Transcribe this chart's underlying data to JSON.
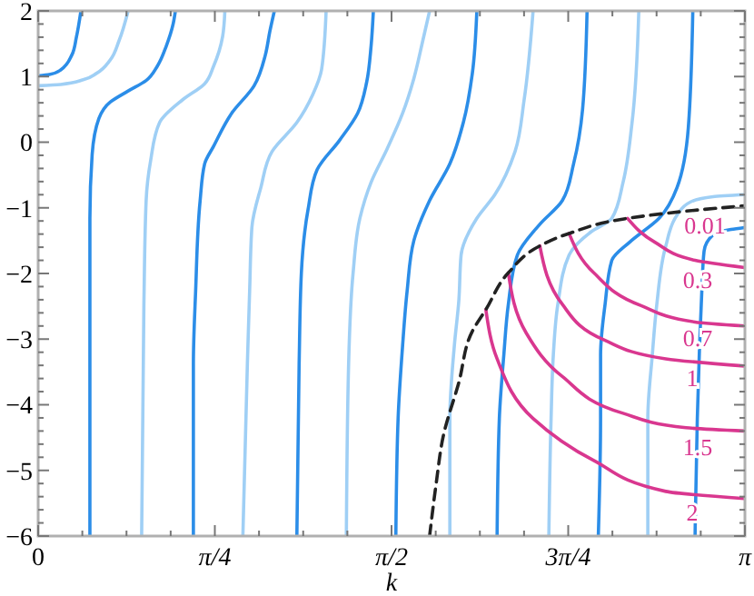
{
  "chart_data": {
    "type": "line",
    "xlabel": "k",
    "xlim": [
      0,
      3.14159
    ],
    "ylim": [
      -6,
      2
    ],
    "grid": false,
    "xticks": [
      {
        "value": 0,
        "label": "0"
      },
      {
        "value": 0.19635,
        "label": null
      },
      {
        "value": 0.3927,
        "label": null
      },
      {
        "value": 0.58905,
        "label": null
      },
      {
        "value": 0.7854,
        "label": "π/4"
      },
      {
        "value": 0.98175,
        "label": null
      },
      {
        "value": 1.1781,
        "label": null
      },
      {
        "value": 1.37445,
        "label": null
      },
      {
        "value": 1.5708,
        "label": "π/2"
      },
      {
        "value": 1.76715,
        "label": null
      },
      {
        "value": 1.9635,
        "label": null
      },
      {
        "value": 2.15985,
        "label": null
      },
      {
        "value": 2.3562,
        "label": "3π/4"
      },
      {
        "value": 2.55255,
        "label": null
      },
      {
        "value": 2.7489,
        "label": null
      },
      {
        "value": 2.94525,
        "label": null
      },
      {
        "value": 3.14159,
        "label": "π"
      }
    ],
    "yticks": [
      -6,
      {
        "value": -5.8,
        "label": null
      },
      {
        "value": -5.6,
        "label": null
      },
      {
        "value": -5.4,
        "label": null
      },
      {
        "value": -5.2,
        "label": null
      },
      -5,
      {
        "value": -4.8,
        "label": null
      },
      {
        "value": -4.6,
        "label": null
      },
      {
        "value": -4.4,
        "label": null
      },
      {
        "value": -4.2,
        "label": null
      },
      -4,
      {
        "value": -3.8,
        "label": null
      },
      {
        "value": -3.6,
        "label": null
      },
      {
        "value": -3.4,
        "label": null
      },
      {
        "value": -3.2,
        "label": null
      },
      -3,
      {
        "value": -2.8,
        "label": null
      },
      {
        "value": -2.6,
        "label": null
      },
      {
        "value": -2.4,
        "label": null
      },
      {
        "value": -2.2,
        "label": null
      },
      -2,
      {
        "value": -1.8,
        "label": null
      },
      {
        "value": -1.6,
        "label": null
      },
      {
        "value": -1.4,
        "label": null
      },
      {
        "value": -1.2,
        "label": null
      },
      -1,
      {
        "value": -0.8,
        "label": null
      },
      {
        "value": -0.6,
        "label": null
      },
      {
        "value": -0.4,
        "label": null
      },
      {
        "value": -0.2,
        "label": null
      },
      0,
      {
        "value": 0.2,
        "label": null
      },
      {
        "value": 0.4,
        "label": null
      },
      {
        "value": 0.6,
        "label": null
      },
      {
        "value": 0.8,
        "label": null
      },
      1,
      {
        "value": 1.2,
        "label": null
      },
      {
        "value": 1.4,
        "label": null
      },
      {
        "value": 1.6,
        "label": null
      },
      {
        "value": 1.8,
        "label": null
      },
      2
    ],
    "series": [
      {
        "color": "#2b8de8",
        "x": [
          0,
          0.05,
          0.1,
          0.15,
          0.17,
          0.19
        ],
        "values": [
          1.01,
          1.03,
          1.1,
          1.33,
          1.6,
          2
        ]
      },
      {
        "color": "#9fcff5",
        "x": [
          0,
          0.1,
          0.2,
          0.26,
          0.32,
          0.36,
          0.4
        ],
        "values": [
          0.86,
          0.88,
          0.95,
          1.05,
          1.25,
          1.55,
          2
        ]
      },
      {
        "color": "#2b8de8",
        "x": [
          0.23,
          0.23,
          0.23,
          0.24,
          0.27,
          0.32,
          0.4,
          0.48,
          0.53,
          0.57,
          0.6,
          0.61
        ],
        "values": [
          -6,
          -3.38,
          -1.16,
          -0.19,
          0.36,
          0.61,
          0.78,
          0.94,
          1.16,
          1.47,
          1.8,
          2
        ]
      },
      {
        "color": "#9fcff5",
        "x": [
          0.46,
          0.47,
          0.48,
          0.5,
          0.54,
          0.64,
          0.74,
          0.78,
          0.82,
          0.83
        ],
        "values": [
          -6,
          -2.47,
          -0.89,
          -0.28,
          0.3,
          0.64,
          0.89,
          1.16,
          1.61,
          2
        ]
      },
      {
        "color": "#2b8de8",
        "x": [
          0.69,
          0.69,
          0.7,
          0.72,
          0.74,
          0.78,
          0.86,
          0.96,
          1.01,
          1.03,
          1.05
        ],
        "values": [
          -6,
          -3.38,
          -2.27,
          -0.89,
          -0.33,
          -0.06,
          0.44,
          0.86,
          1.33,
          1.69,
          2
        ]
      },
      {
        "color": "#9fcff5",
        "x": [
          0.91,
          0.93,
          0.94,
          0.95,
          0.99,
          1.04,
          1.15,
          1.22,
          1.26,
          1.28
        ],
        "values": [
          -6,
          -3.38,
          -2.27,
          -1.3,
          -0.69,
          -0.14,
          0.3,
          0.72,
          1.11,
          2
        ]
      },
      {
        "color": "#2b8de8",
        "x": [
          1.15,
          1.16,
          1.17,
          1.2,
          1.24,
          1.34,
          1.42,
          1.46,
          1.48,
          1.49
        ],
        "values": [
          -6,
          -3.38,
          -1.99,
          -1.02,
          -0.42,
          0.03,
          0.44,
          0.91,
          1.47,
          2
        ]
      },
      {
        "color": "#9fcff5",
        "x": [
          1.37,
          1.38,
          1.4,
          1.43,
          1.48,
          1.55,
          1.62,
          1.67,
          1.71,
          1.74
        ],
        "values": [
          -6,
          -3.38,
          -1.99,
          -1.16,
          -0.61,
          -0.11,
          0.44,
          0.97,
          1.55,
          2
        ]
      },
      {
        "color": "#2b8de8",
        "x": [
          1.59,
          1.6,
          1.62,
          1.64,
          1.67,
          1.74,
          1.83,
          1.89,
          1.93,
          1.95
        ],
        "values": [
          -6,
          -4.21,
          -3.1,
          -2.27,
          -1.5,
          -0.89,
          -0.33,
          0.3,
          1.05,
          2
        ]
      },
      {
        "color": "#9fcff5",
        "x": [
          1.83,
          1.83,
          1.85,
          1.87,
          1.88,
          1.95,
          2.03,
          2.12,
          2.16,
          2.2
        ],
        "values": [
          -6,
          -4.21,
          -3.1,
          -2.41,
          -1.72,
          -1.16,
          -0.8,
          -0.14,
          0.64,
          2
        ]
      },
      {
        "color": "#2b8de8",
        "x": [
          2.04,
          2.05,
          2.07,
          2.09,
          2.13,
          2.23,
          2.33,
          2.38,
          2.42,
          2.44
        ],
        "values": [
          -6,
          -4.21,
          -3.24,
          -2.47,
          -1.72,
          -1.25,
          -0.89,
          -0.33,
          0.5,
          2
        ]
      },
      {
        "color": "#9fcff5",
        "x": [
          2.27,
          2.28,
          2.29,
          2.31,
          2.36,
          2.46,
          2.55,
          2.6,
          2.64,
          2.67
        ],
        "values": [
          -6,
          -4.21,
          -3.24,
          -2.47,
          -1.72,
          -1.36,
          -1.16,
          -0.61,
          0.3,
          2
        ]
      },
      {
        "color": "#2b8de8",
        "x": [
          2.49,
          2.5,
          2.5,
          2.52,
          2.55,
          2.63,
          2.76,
          2.84,
          2.89,
          2.91
        ],
        "values": [
          -6,
          -4.21,
          -3.24,
          -2.47,
          -1.8,
          -1.52,
          -1.16,
          -0.69,
          0.22,
          2
        ]
      },
      {
        "color": "#9fcff5",
        "x": [
          2.71,
          2.71,
          2.73,
          2.75,
          2.79,
          2.84,
          2.9,
          3,
          3.14
        ],
        "values": [
          -6,
          -4.21,
          -3.24,
          -2.47,
          -1.58,
          -1.11,
          -0.91,
          -0.83,
          -0.8
        ]
      },
      {
        "color": "#2b8de8",
        "x": [
          2.92,
          2.93,
          2.94,
          2.95,
          2.96,
          3,
          3.08,
          3.14
        ],
        "values": [
          -6,
          -4.21,
          -3.1,
          -2.27,
          -1.66,
          -1.41,
          -1.33,
          -1.3
        ]
      },
      {
        "color": "#d9378f",
        "x": [
          2.62,
          2.74,
          2.92,
          3.14
        ],
        "values": [
          -1.16,
          -1.52,
          -1.8,
          -1.91
        ]
      },
      {
        "color": "#d9378f",
        "x": [
          2.36,
          2.47,
          2.68,
          2.92,
          3.14
        ],
        "values": [
          -1.39,
          -1.99,
          -2.49,
          -2.74,
          -2.8
        ]
      },
      {
        "color": "#d9378f",
        "x": [
          2.23,
          2.33,
          2.52,
          2.79,
          3.14
        ],
        "values": [
          -1.58,
          -2.47,
          -3.02,
          -3.3,
          -3.41
        ]
      },
      {
        "color": "#d9378f",
        "x": [
          2.09,
          2.17,
          2.33,
          2.6,
          2.88,
          3.14
        ],
        "values": [
          -1.99,
          -2.91,
          -3.57,
          -4.13,
          -4.35,
          -4.4
        ]
      },
      {
        "color": "#d9378f",
        "x": [
          1.99,
          2.04,
          2.2,
          2.47,
          2.79,
          3.14
        ],
        "values": [
          -2.55,
          -3.3,
          -4.21,
          -4.85,
          -5.32,
          -5.43
        ]
      },
      {
        "color": "#222222",
        "line_style": "dashed",
        "x": [
          1.74,
          1.77,
          1.8,
          1.87,
          1.93,
          1.99,
          2.09,
          2.23,
          2.36,
          2.62,
          2.88,
          3.14
        ],
        "values": [
          -6,
          -5.18,
          -4.49,
          -3.66,
          -2.88,
          -2.55,
          -1.99,
          -1.58,
          -1.39,
          -1.16,
          -1.05,
          -0.97
        ]
      }
    ],
    "annotations": [
      "0.01",
      "0.3",
      "0.7",
      "1",
      "1.5",
      "2"
    ]
  }
}
